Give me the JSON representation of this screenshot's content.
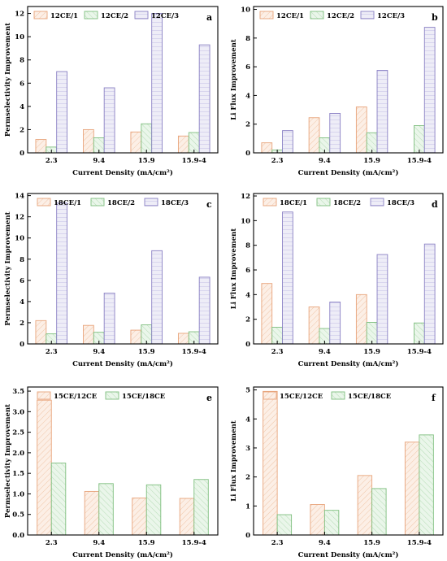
{
  "styles": {
    "colors": [
      "#e8a47b",
      "#7fbf7f",
      "#8a80c4"
    ],
    "fills": [
      "#fcefe6",
      "#eaf6ea",
      "#eeedf7"
    ]
  },
  "chart_data": [
    {
      "panel": "a",
      "type": "bar",
      "categories": [
        "2.3",
        "9.4",
        "15.9",
        "15.9-4"
      ],
      "series": [
        {
          "name": "12CE/1",
          "values": [
            1.15,
            2.0,
            1.8,
            1.45
          ]
        },
        {
          "name": "12CE/2",
          "values": [
            0.5,
            1.3,
            2.5,
            1.75
          ]
        },
        {
          "name": "12CE/3",
          "values": [
            7.0,
            5.6,
            12.0,
            9.3
          ]
        }
      ],
      "xlabel": "Current Density (mA/cm²)",
      "ylabel": "Permselectivity Improvement",
      "ylim": [
        0,
        12.6
      ],
      "yticks": [
        0,
        2,
        4,
        6,
        8,
        10,
        12
      ],
      "legend": "top-left"
    },
    {
      "panel": "b",
      "type": "bar",
      "categories": [
        "2.3",
        "9.4",
        "15.9",
        "15.9-4"
      ],
      "series": [
        {
          "name": "12CE/1",
          "values": [
            0.7,
            2.45,
            3.2,
            0
          ]
        },
        {
          "name": "12CE/2",
          "values": [
            0.2,
            1.05,
            1.4,
            1.9
          ]
        },
        {
          "name": "12CE/3",
          "values": [
            1.55,
            2.75,
            5.75,
            8.75
          ]
        }
      ],
      "xlabel": "Current Density (mA/cm²)",
      "ylabel": "Li Flux Improvement",
      "ylim": [
        0,
        10.2
      ],
      "yticks": [
        0,
        2,
        4,
        6,
        8,
        10
      ],
      "legend": "top-left"
    },
    {
      "panel": "c",
      "type": "bar",
      "categories": [
        "2.3",
        "9.4",
        "15.9",
        "15.9-4"
      ],
      "series": [
        {
          "name": "18CE/1",
          "values": [
            2.2,
            1.75,
            1.3,
            1.0
          ]
        },
        {
          "name": "18CE/2",
          "values": [
            0.95,
            1.1,
            1.8,
            1.15
          ]
        },
        {
          "name": "18CE/3",
          "values": [
            13.3,
            4.8,
            8.8,
            6.3
          ]
        }
      ],
      "xlabel": "Current Density (mA/cm²)",
      "ylabel": "Permselectivity Improvement",
      "ylim": [
        0,
        14.2
      ],
      "yticks": [
        0,
        2,
        4,
        6,
        8,
        10,
        12,
        14
      ],
      "legend": "top"
    },
    {
      "panel": "d",
      "type": "bar",
      "categories": [
        "2.3",
        "9.4",
        "15.9",
        "15.9-4"
      ],
      "series": [
        {
          "name": "18CE/1",
          "values": [
            4.9,
            3.0,
            4.0,
            0
          ]
        },
        {
          "name": "18CE/2",
          "values": [
            1.35,
            1.25,
            1.75,
            1.7
          ]
        },
        {
          "name": "18CE/3",
          "values": [
            10.7,
            3.4,
            7.25,
            8.1
          ]
        }
      ],
      "xlabel": "Current Density (mA/cm²)",
      "ylabel": "Li Flux Improvement",
      "ylim": [
        0,
        12.2
      ],
      "yticks": [
        0,
        2,
        4,
        6,
        8,
        10,
        12
      ],
      "legend": "top"
    },
    {
      "panel": "e",
      "type": "bar",
      "categories": [
        "2.3",
        "9.4",
        "15.9",
        "15.9-4"
      ],
      "series": [
        {
          "name": "15CE/12CE",
          "values": [
            3.28,
            1.06,
            0.9,
            0.89
          ]
        },
        {
          "name": "15CE/18CE",
          "values": [
            1.75,
            1.25,
            1.22,
            1.35
          ]
        }
      ],
      "xlabel": "Current Density (mA/cm²)",
      "ylabel": "Permselectivity Improvement",
      "ylim": [
        0,
        3.6
      ],
      "yticks": [
        "0.0",
        "0.5",
        "1.0",
        "1.5",
        "2.0",
        "2.5",
        "3.0",
        "3.5"
      ],
      "legend": "top"
    },
    {
      "panel": "f",
      "type": "bar",
      "categories": [
        "2.3",
        "9.4",
        "15.9",
        "15.9-4"
      ],
      "series": [
        {
          "name": "15CE/12CE",
          "values": [
            4.95,
            1.05,
            2.05,
            3.2
          ]
        },
        {
          "name": "15CE/18CE",
          "values": [
            0.7,
            0.85,
            1.6,
            3.45
          ]
        }
      ],
      "xlabel": "Current Density (mA/cm²)",
      "ylabel": "Li Flux Improvement",
      "ylim": [
        0,
        5.1
      ],
      "yticks": [
        0,
        1,
        2,
        3,
        4,
        5
      ],
      "legend": "top"
    }
  ]
}
